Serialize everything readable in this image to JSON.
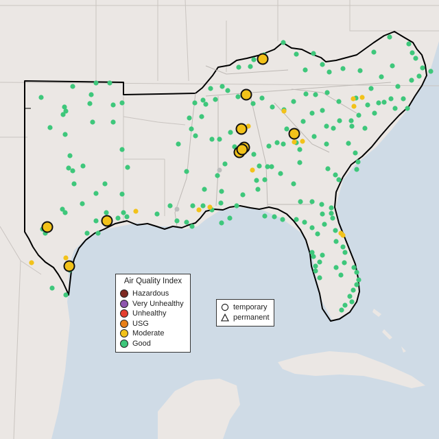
{
  "map": {
    "background_color": "#ebe7e4",
    "water_color": "#cfdbe6",
    "region_outline_color": "#000000",
    "boundary_color": "#c9c4c0"
  },
  "legend_aqi": {
    "title": "Air Quality Index",
    "items": [
      {
        "label": "Hazardous",
        "color": "#7e2a22"
      },
      {
        "label": "Very Unhealthy",
        "color": "#8e56ae"
      },
      {
        "label": "Unhealthy",
        "color": "#e53f30"
      },
      {
        "label": "USG",
        "color": "#e88019"
      },
      {
        "label": "Moderate",
        "color": "#f2c21a"
      },
      {
        "label": "Good",
        "color": "#3ec77b"
      }
    ]
  },
  "legend_type": {
    "items": [
      {
        "label": "temporary",
        "icon": "circle-outline-icon"
      },
      {
        "label": "permanent",
        "icon": "triangle-outline-icon"
      }
    ]
  },
  "station_category_colors": {
    "Good": "#3ec77b",
    "Moderate": "#f2c21a",
    "No data": "#bdbdbd"
  }
}
